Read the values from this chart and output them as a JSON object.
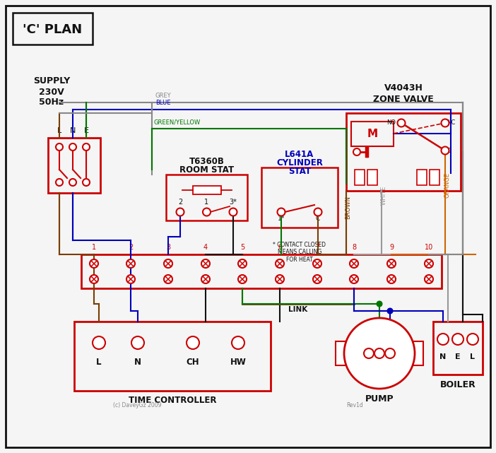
{
  "bg": "#f5f5f5",
  "RED": "#cc0000",
  "BLUE": "#0000bb",
  "GREEN": "#007700",
  "GREY": "#888888",
  "BROWN": "#7a3d00",
  "ORANGE": "#cc6600",
  "BLACK": "#111111",
  "WHITE_W": "#999999",
  "title": "'C' PLAN",
  "supply_label": "SUPPLY\n230V\n50Hz",
  "time_ctrl": "TIME CONTROLLER",
  "pump_lbl": "PUMP",
  "boiler_lbl": "BOILER",
  "zv_title1": "V4043H",
  "zv_title2": "ZONE VALVE",
  "rs_title1": "T6360B",
  "rs_title2": "ROOM STAT",
  "cs_title1": "L641A",
  "cs_title2": "CYLINDER",
  "cs_title3": "STAT",
  "contact_note": "* CONTACT CLOSED\nMEANS CALLING\nFOR HEAT",
  "copyright": "(c) DaveyGz 2009",
  "revid": "Rev1d"
}
